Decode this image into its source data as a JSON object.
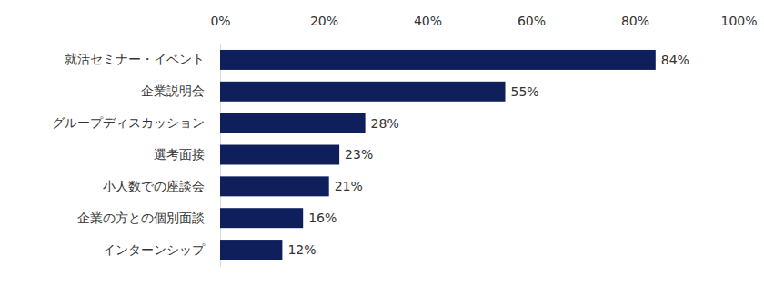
{
  "chart_data": {
    "type": "bar",
    "orientation": "horizontal",
    "categories": [
      "就活セミナー・イベント",
      "企業説明会",
      "グループディスカッション",
      "選考面接",
      "小人数での座談会",
      "企業の方との個別面談",
      "インターンシップ"
    ],
    "values": [
      84,
      55,
      28,
      23,
      21,
      16,
      12
    ],
    "value_labels": [
      "84%",
      "55%",
      "28%",
      "23%",
      "21%",
      "16%",
      "12%"
    ],
    "data_labels": true,
    "color": "#0e1f5b",
    "xlim": [
      0,
      100
    ],
    "xticks": [
      {
        "value": 0,
        "label": "0%"
      },
      {
        "value": 20,
        "label": "20%"
      },
      {
        "value": 40,
        "label": "40%"
      },
      {
        "value": 60,
        "label": "60%"
      },
      {
        "value": 80,
        "label": "80%"
      },
      {
        "value": 100,
        "label": "100%"
      }
    ],
    "grid": false
  }
}
